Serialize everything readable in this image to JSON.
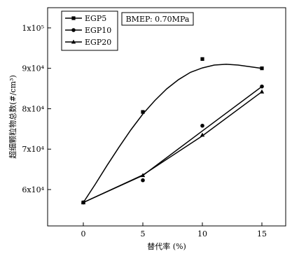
{
  "chart_data": {
    "type": "scatter",
    "title": "",
    "xlabel": "替代率 (%)",
    "ylabel": "超细颗粒物总数(#/cm³)",
    "xlim": [
      -3,
      17
    ],
    "ylim": [
      51000,
      105000
    ],
    "xticks": [
      0,
      5,
      10,
      15
    ],
    "xtick_labels": [
      "0",
      "5",
      "10",
      "15"
    ],
    "yticks": [
      60000,
      70000,
      80000,
      90000,
      100000
    ],
    "ytick_labels": [
      "6x10⁴",
      "7x10⁴",
      "8x10⁴",
      "9x10⁴",
      "1x10⁵"
    ],
    "grid": false,
    "legend_position": "top-left",
    "annotation": "BMEP: 0.70MPa",
    "series": [
      {
        "name": "EGP5",
        "marker": "square",
        "x": [
          0,
          5,
          10,
          15
        ],
        "y": [
          56800,
          79200,
          92300,
          90000
        ],
        "fit_curve_x": [
          0,
          1,
          2,
          3,
          4,
          5,
          6,
          7,
          8,
          9,
          10,
          11,
          12,
          13,
          14,
          15
        ],
        "fit_curve_y": [
          56800,
          61300,
          66000,
          70500,
          74800,
          78700,
          82000,
          84900,
          87200,
          89000,
          90100,
          90800,
          91000,
          90800,
          90400,
          90000
        ]
      },
      {
        "name": "EGP10",
        "marker": "circle",
        "x": [
          0,
          5,
          10,
          15
        ],
        "y": [
          56800,
          62300,
          75800,
          85500
        ],
        "fit_curve_x": [
          0,
          5,
          10,
          15
        ],
        "fit_curve_y": [
          56800,
          63500,
          74500,
          85500
        ]
      },
      {
        "name": "EGP20",
        "marker": "triangle",
        "x": [
          0,
          5,
          10,
          15
        ],
        "y": [
          56800,
          63500,
          73500,
          84200
        ],
        "fit_curve_x": [
          0,
          5,
          10,
          15
        ],
        "fit_curve_y": [
          56800,
          63600,
          73300,
          84200
        ]
      }
    ]
  }
}
